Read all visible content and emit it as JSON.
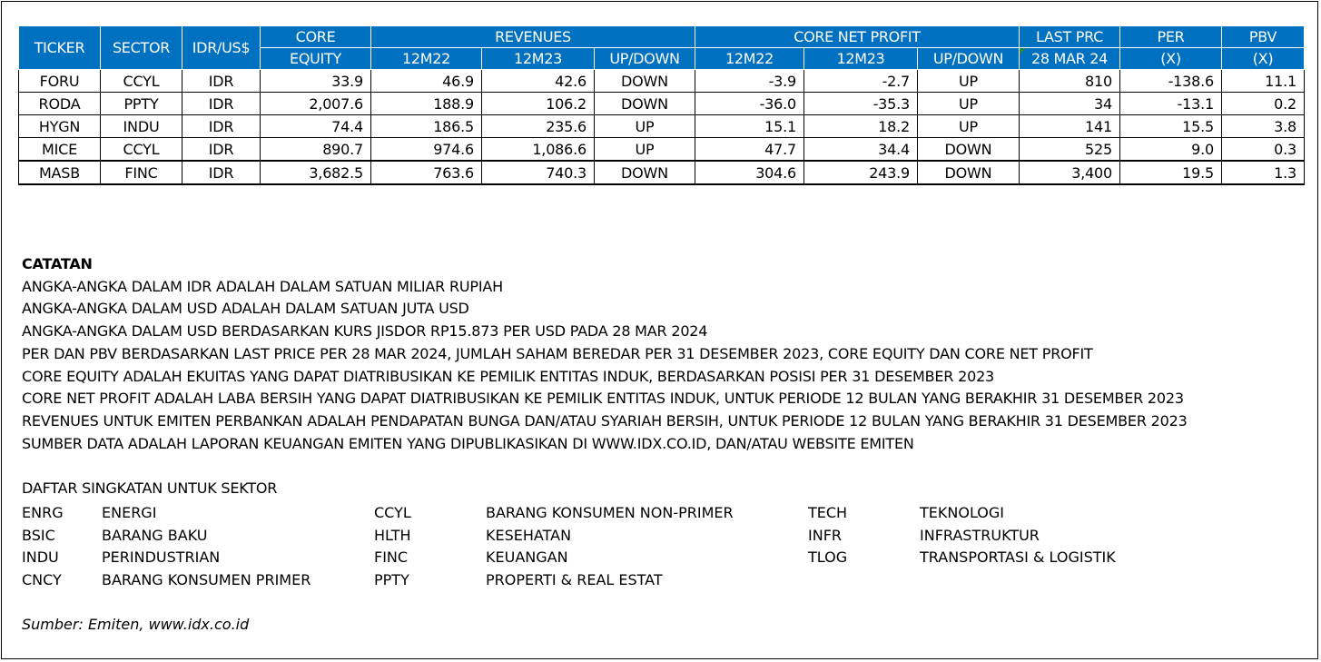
{
  "colors": {
    "header_bg": "#0070C0",
    "header_text": "#FFFFFF"
  },
  "table": {
    "headers_top": [
      "TICKER",
      "SECTOR",
      "IDR/US$",
      "CORE",
      "REVENUES",
      "CORE NET PROFIT",
      "LAST PRC",
      "PER",
      "PBV"
    ],
    "headers_sub": [
      "EQUITY",
      "12M22",
      "12M23",
      "UP/DOWN",
      "12M22",
      "12M23",
      "UP/DOWN",
      "28 MAR 24",
      "(X)",
      "(X)"
    ],
    "rows": [
      [
        "FORU",
        "CCYL",
        "IDR",
        "33.9",
        "46.9",
        "42.6",
        "DOWN",
        "-3.9",
        "-2.7",
        "UP",
        "810",
        "-138.6",
        "11.1"
      ],
      [
        "RODA",
        "PPTY",
        "IDR",
        "2,007.6",
        "188.9",
        "106.2",
        "DOWN",
        "-36.0",
        "-35.3",
        "UP",
        "34",
        "-13.1",
        "0.2"
      ],
      [
        "HYGN",
        "INDU",
        "IDR",
        "74.4",
        "186.5",
        "235.6",
        "UP",
        "15.1",
        "18.2",
        "UP",
        "141",
        "15.5",
        "3.8"
      ],
      [
        "MICE",
        "CCYL",
        "IDR",
        "890.7",
        "974.6",
        "1,086.6",
        "UP",
        "47.7",
        "34.4",
        "DOWN",
        "525",
        "9.0",
        "0.3"
      ],
      [
        "MASB",
        "FINC",
        "IDR",
        "3,682.5",
        "763.6",
        "740.3",
        "DOWN",
        "304.6",
        "243.9",
        "DOWN",
        "3,400",
        "19.5",
        "1.3"
      ]
    ]
  },
  "notes": {
    "title": "CATATAN",
    "lines": [
      "ANGKA-ANGKA DALAM IDR ADALAH DALAM SATUAN MILIAR RUPIAH",
      "ANGKA-ANGKA DALAM USD ADALAH DALAM SATUAN JUTA USD",
      "ANGKA-ANGKA DALAM USD BERDASARKAN KURS JISDOR RP15.873 PER USD PADA 28 MAR 2024",
      "PER DAN PBV BERDASARKAN LAST PRICE PER 28 MAR 2024, JUMLAH SAHAM BEREDAR PER 31 DESEMBER 2023, CORE EQUITY DAN CORE NET PROFIT",
      "CORE EQUITY ADALAH EKUITAS YANG DAPAT DIATRIBUSIKAN KE PEMILIK ENTITAS INDUK, BERDASARKAN POSISI PER 31 DESEMBER 2023",
      "CORE NET PROFIT ADALAH LABA BERSIH YANG DAPAT DIATRIBUSIKAN KE PEMILIK ENTITAS INDUK, UNTUK PERIODE 12 BULAN YANG BERAKHIR 31 DESEMBER 2023",
      "REVENUES UNTUK EMITEN PERBANKAN ADALAH PENDAPATAN BUNGA DAN/ATAU SYARIAH BERSIH, UNTUK PERIODE 12 BULAN YANG BERAKHIR 31 DESEMBER 2023",
      "SUMBER DATA ADALAH LAPORAN KEUANGAN EMITEN YANG DIPUBLIKASIKAN DI WWW.IDX.CO.ID, DAN/ATAU WEBSITE EMITEN"
    ]
  },
  "sectors": {
    "title": "DAFTAR SINGKATAN UNTUK SEKTOR",
    "columns": [
      [
        [
          "ENRG",
          "ENERGI"
        ],
        [
          "BSIC",
          "BARANG BAKU"
        ],
        [
          "INDU",
          "PERINDUSTRIAN"
        ],
        [
          "CNCY",
          "BARANG KONSUMEN PRIMER"
        ]
      ],
      [
        [
          "CCYL",
          "BARANG KONSUMEN NON-PRIMER"
        ],
        [
          "HLTH",
          "KESEHATAN"
        ],
        [
          "FINC",
          "KEUANGAN"
        ],
        [
          "PPTY",
          "PROPERTI & REAL ESTAT"
        ]
      ],
      [
        [
          "TECH",
          "TEKNOLOGI"
        ],
        [
          "INFR",
          "INFRASTRUKTUR"
        ],
        [
          "TLOG",
          "TRANSPORTASI & LOGISTIK"
        ]
      ]
    ]
  },
  "source": "Sumber: Emiten, www.idx.co.id"
}
